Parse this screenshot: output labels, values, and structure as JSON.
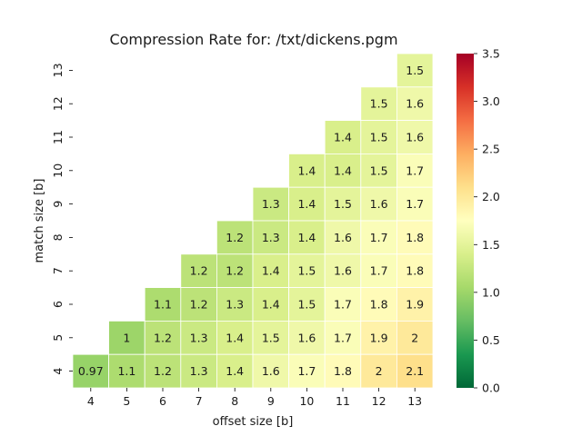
{
  "chart_data": {
    "type": "heatmap",
    "title": "Compression Rate for: /txt/dickens.pgm",
    "xlabel": "offset size [b]",
    "ylabel": "match size [b]",
    "x_categories": [
      "4",
      "5",
      "6",
      "7",
      "8",
      "9",
      "10",
      "11",
      "12",
      "13"
    ],
    "y_categories": [
      "13",
      "12",
      "11",
      "10",
      "9",
      "8",
      "7",
      "6",
      "5",
      "4"
    ],
    "cells": [
      {
        "x": "13",
        "y": "13",
        "label": "1.5",
        "value": 1.5
      },
      {
        "x": "12",
        "y": "12",
        "label": "1.5",
        "value": 1.5
      },
      {
        "x": "13",
        "y": "12",
        "label": "1.6",
        "value": 1.6
      },
      {
        "x": "11",
        "y": "11",
        "label": "1.4",
        "value": 1.4
      },
      {
        "x": "12",
        "y": "11",
        "label": "1.5",
        "value": 1.5
      },
      {
        "x": "13",
        "y": "11",
        "label": "1.6",
        "value": 1.6
      },
      {
        "x": "10",
        "y": "10",
        "label": "1.4",
        "value": 1.4
      },
      {
        "x": "11",
        "y": "10",
        "label": "1.4",
        "value": 1.4
      },
      {
        "x": "12",
        "y": "10",
        "label": "1.5",
        "value": 1.5
      },
      {
        "x": "13",
        "y": "10",
        "label": "1.7",
        "value": 1.7
      },
      {
        "x": "9",
        "y": "9",
        "label": "1.3",
        "value": 1.3
      },
      {
        "x": "10",
        "y": "9",
        "label": "1.4",
        "value": 1.4
      },
      {
        "x": "11",
        "y": "9",
        "label": "1.5",
        "value": 1.5
      },
      {
        "x": "12",
        "y": "9",
        "label": "1.6",
        "value": 1.6
      },
      {
        "x": "13",
        "y": "9",
        "label": "1.7",
        "value": 1.7
      },
      {
        "x": "8",
        "y": "8",
        "label": "1.2",
        "value": 1.2
      },
      {
        "x": "9",
        "y": "8",
        "label": "1.3",
        "value": 1.3
      },
      {
        "x": "10",
        "y": "8",
        "label": "1.4",
        "value": 1.4
      },
      {
        "x": "11",
        "y": "8",
        "label": "1.6",
        "value": 1.6
      },
      {
        "x": "12",
        "y": "8",
        "label": "1.7",
        "value": 1.7
      },
      {
        "x": "13",
        "y": "8",
        "label": "1.8",
        "value": 1.8
      },
      {
        "x": "7",
        "y": "7",
        "label": "1.2",
        "value": 1.2
      },
      {
        "x": "8",
        "y": "7",
        "label": "1.2",
        "value": 1.2
      },
      {
        "x": "9",
        "y": "7",
        "label": "1.4",
        "value": 1.4
      },
      {
        "x": "10",
        "y": "7",
        "label": "1.5",
        "value": 1.5
      },
      {
        "x": "11",
        "y": "7",
        "label": "1.6",
        "value": 1.6
      },
      {
        "x": "12",
        "y": "7",
        "label": "1.7",
        "value": 1.7
      },
      {
        "x": "13",
        "y": "7",
        "label": "1.8",
        "value": 1.8
      },
      {
        "x": "6",
        "y": "6",
        "label": "1.1",
        "value": 1.1
      },
      {
        "x": "7",
        "y": "6",
        "label": "1.2",
        "value": 1.2
      },
      {
        "x": "8",
        "y": "6",
        "label": "1.3",
        "value": 1.3
      },
      {
        "x": "9",
        "y": "6",
        "label": "1.4",
        "value": 1.4
      },
      {
        "x": "10",
        "y": "6",
        "label": "1.5",
        "value": 1.5
      },
      {
        "x": "11",
        "y": "6",
        "label": "1.7",
        "value": 1.7
      },
      {
        "x": "12",
        "y": "6",
        "label": "1.8",
        "value": 1.8
      },
      {
        "x": "13",
        "y": "6",
        "label": "1.9",
        "value": 1.9
      },
      {
        "x": "5",
        "y": "5",
        "label": "1",
        "value": 1.0
      },
      {
        "x": "6",
        "y": "5",
        "label": "1.2",
        "value": 1.2
      },
      {
        "x": "7",
        "y": "5",
        "label": "1.3",
        "value": 1.3
      },
      {
        "x": "8",
        "y": "5",
        "label": "1.4",
        "value": 1.4
      },
      {
        "x": "9",
        "y": "5",
        "label": "1.5",
        "value": 1.5
      },
      {
        "x": "10",
        "y": "5",
        "label": "1.6",
        "value": 1.6
      },
      {
        "x": "11",
        "y": "5",
        "label": "1.7",
        "value": 1.7
      },
      {
        "x": "12",
        "y": "5",
        "label": "1.9",
        "value": 1.9
      },
      {
        "x": "13",
        "y": "5",
        "label": "2",
        "value": 2.0
      },
      {
        "x": "4",
        "y": "4",
        "label": "0.97",
        "value": 0.97
      },
      {
        "x": "5",
        "y": "4",
        "label": "1.1",
        "value": 1.1
      },
      {
        "x": "6",
        "y": "4",
        "label": "1.2",
        "value": 1.2
      },
      {
        "x": "7",
        "y": "4",
        "label": "1.3",
        "value": 1.3
      },
      {
        "x": "8",
        "y": "4",
        "label": "1.4",
        "value": 1.4
      },
      {
        "x": "9",
        "y": "4",
        "label": "1.6",
        "value": 1.6
      },
      {
        "x": "10",
        "y": "4",
        "label": "1.7",
        "value": 1.7
      },
      {
        "x": "11",
        "y": "4",
        "label": "1.8",
        "value": 1.8
      },
      {
        "x": "12",
        "y": "4",
        "label": "2",
        "value": 2.0
      },
      {
        "x": "13",
        "y": "4",
        "label": "2.1",
        "value": 2.1
      }
    ],
    "colorbar": {
      "colormap": "RdYlGn_r",
      "range": [
        0.0,
        3.5
      ],
      "ticks": [
        "0.0",
        "0.5",
        "1.0",
        "1.5",
        "2.0",
        "2.5",
        "3.0",
        "3.5"
      ]
    },
    "grid": false,
    "cell_border_color": "#ffffff"
  }
}
